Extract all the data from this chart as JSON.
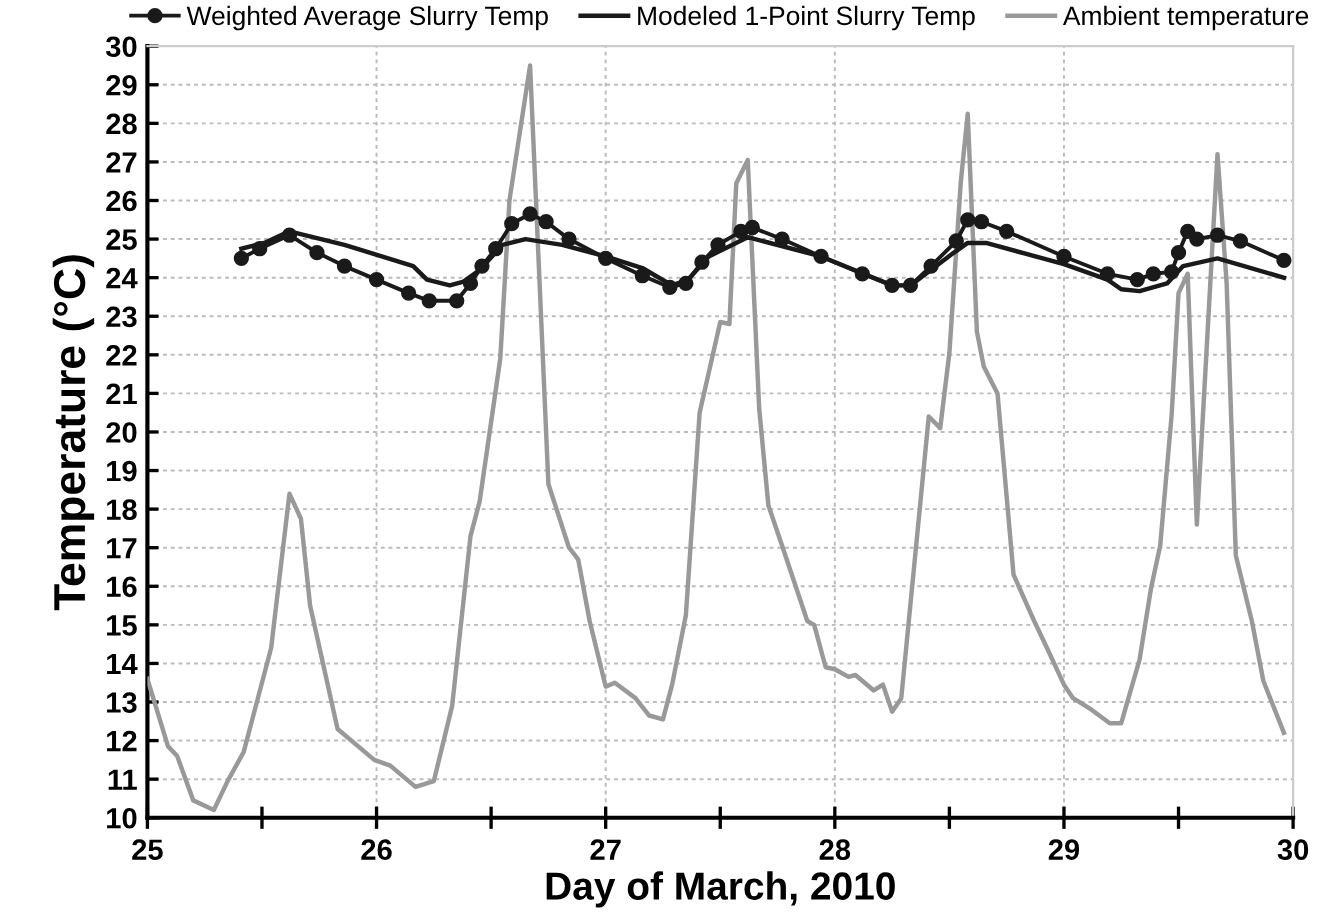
{
  "chart_data": {
    "type": "line",
    "xlabel": "Day of March, 2010",
    "ylabel": "Temperature (°C)",
    "xlim": [
      25,
      30
    ],
    "ylim": [
      10,
      30
    ],
    "xticks": [
      25,
      {
        "value": 25.5,
        "label": null
      },
      26,
      {
        "value": 26.5,
        "label": null
      },
      27,
      {
        "value": 27.5,
        "label": null
      },
      28,
      {
        "value": 28.5,
        "label": null
      },
      29,
      {
        "value": 29.5,
        "label": null
      },
      30
    ],
    "yticks": [
      10,
      11,
      12,
      13,
      14,
      15,
      16,
      17,
      18,
      19,
      20,
      21,
      22,
      23,
      24,
      25,
      26,
      27,
      28,
      29,
      30
    ],
    "grid": true,
    "legend": "top",
    "line_style": "solid",
    "series": [
      {
        "name": "Weighted Average Slurry Temp",
        "color": "#1a1a1a",
        "marker": "circle",
        "x": [
          25.41,
          25.49,
          25.62,
          25.74,
          25.86,
          26.0,
          26.14,
          26.23,
          26.35,
          26.41,
          26.46,
          26.52,
          26.59,
          26.67,
          26.74,
          26.84,
          27.0,
          27.16,
          27.28,
          27.35,
          27.42,
          27.49,
          27.59,
          27.64,
          27.77,
          27.94,
          28.12,
          28.25,
          28.33,
          28.42,
          28.53,
          28.58,
          28.64,
          28.75,
          29.0,
          29.19,
          29.32,
          29.39,
          29.47,
          29.5,
          29.54,
          29.58,
          29.67,
          29.77,
          29.96
        ],
        "values": [
          24.5,
          24.75,
          25.1,
          24.65,
          24.3,
          23.95,
          23.6,
          23.4,
          23.4,
          23.85,
          24.3,
          24.75,
          25.4,
          25.65,
          25.45,
          25.0,
          24.5,
          24.05,
          23.75,
          23.85,
          24.4,
          24.85,
          25.2,
          25.3,
          25.0,
          24.55,
          24.1,
          23.8,
          23.8,
          24.3,
          24.95,
          25.5,
          25.45,
          25.2,
          24.55,
          24.1,
          23.95,
          24.1,
          24.15,
          24.65,
          25.2,
          25.0,
          25.1,
          24.95,
          24.45
        ]
      },
      {
        "name": "Modeled 1-Point Slurry Temp",
        "color": "#1a1a1a",
        "marker": "none",
        "x": [
          25.41,
          25.51,
          25.62,
          25.86,
          26.16,
          26.22,
          26.32,
          26.38,
          26.45,
          26.55,
          26.65,
          26.81,
          27.0,
          27.16,
          27.29,
          27.36,
          27.45,
          27.62,
          27.94,
          28.25,
          28.33,
          28.52,
          28.58,
          28.66,
          29.0,
          29.19,
          29.25,
          29.33,
          29.45,
          29.52,
          29.67,
          29.96
        ],
        "values": [
          24.75,
          24.9,
          25.2,
          24.85,
          24.3,
          23.95,
          23.8,
          23.9,
          24.2,
          24.85,
          25.0,
          24.85,
          24.55,
          24.25,
          23.8,
          23.95,
          24.55,
          25.05,
          24.55,
          23.8,
          23.8,
          24.65,
          24.9,
          24.9,
          24.35,
          23.95,
          23.7,
          23.65,
          23.85,
          24.3,
          24.5,
          24.0
        ]
      },
      {
        "name": "Ambient temperature",
        "color": "#999999",
        "marker": "none",
        "x": [
          25.0,
          25.09,
          25.13,
          25.2,
          25.29,
          25.35,
          25.42,
          25.54,
          25.62,
          25.67,
          25.71,
          25.83,
          25.99,
          26.06,
          26.17,
          26.25,
          26.33,
          26.41,
          26.45,
          26.54,
          26.58,
          26.67,
          26.75,
          26.84,
          26.88,
          26.93,
          27.0,
          27.04,
          27.13,
          27.19,
          27.25,
          27.29,
          27.35,
          27.41,
          27.5,
          27.54,
          27.57,
          27.62,
          27.67,
          27.71,
          27.77,
          27.88,
          27.91,
          27.96,
          28.0,
          28.06,
          28.09,
          28.17,
          28.21,
          28.25,
          28.29,
          28.41,
          28.46,
          28.5,
          28.55,
          28.58,
          28.62,
          28.65,
          28.71,
          28.78,
          28.87,
          28.93,
          29.0,
          29.04,
          29.12,
          29.2,
          29.25,
          29.33,
          29.38,
          29.42,
          29.47,
          29.5,
          29.54,
          29.58,
          29.67,
          29.71,
          29.75,
          29.82,
          29.87,
          29.96
        ],
        "values": [
          13.6,
          11.85,
          11.6,
          10.45,
          10.2,
          10.95,
          11.7,
          14.4,
          18.4,
          17.75,
          15.5,
          12.3,
          11.5,
          11.35,
          10.8,
          10.95,
          12.9,
          17.3,
          18.2,
          21.9,
          26.0,
          29.5,
          18.65,
          17.0,
          16.7,
          15.1,
          13.4,
          13.5,
          13.1,
          12.65,
          12.55,
          13.45,
          15.25,
          20.5,
          22.85,
          22.8,
          26.45,
          27.05,
          20.6,
          18.1,
          17.05,
          15.1,
          15.0,
          13.9,
          13.85,
          13.65,
          13.7,
          13.3,
          13.45,
          12.75,
          13.1,
          20.4,
          20.1,
          22.05,
          26.5,
          28.25,
          22.6,
          21.7,
          21.0,
          16.3,
          15.1,
          14.35,
          13.45,
          13.1,
          12.8,
          12.45,
          12.45,
          14.1,
          15.95,
          17.05,
          20.45,
          23.6,
          24.1,
          17.6,
          27.2,
          23.85,
          16.8,
          15.1,
          13.55,
          12.2
        ]
      }
    ]
  }
}
